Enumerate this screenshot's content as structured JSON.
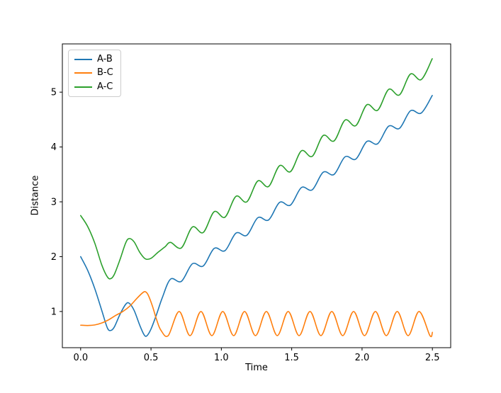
{
  "figure": {
    "background": "#ffffff",
    "axis_color": "#000000"
  },
  "chart_data": {
    "type": "line",
    "title": "",
    "xlabel": "Time",
    "ylabel": "Distance",
    "xlim": [
      -0.13,
      2.63
    ],
    "ylim": [
      0.34,
      5.88
    ],
    "grid": false,
    "legend": {
      "position": "upper-left",
      "entries": [
        "A-B",
        "B-C",
        "A-C"
      ]
    },
    "xticks": {
      "values": [
        0.0,
        0.5,
        1.0,
        1.5,
        2.0,
        2.5
      ],
      "labels": [
        "0.0",
        "0.5",
        "1.0",
        "1.5",
        "2.0",
        "2.5"
      ]
    },
    "yticks": {
      "values": [
        1,
        2,
        3,
        4,
        5
      ],
      "labels": [
        "1",
        "2",
        "3",
        "4",
        "5"
      ]
    },
    "series": [
      {
        "name": "A-B",
        "color": "#1f77b4",
        "points": [
          [
            0,
            2.0
          ],
          [
            0.05,
            1.75
          ],
          [
            0.1,
            1.42
          ],
          [
            0.15,
            1.02
          ],
          [
            0.19,
            0.7
          ],
          [
            0.215,
            0.655
          ],
          [
            0.24,
            0.72
          ],
          [
            0.28,
            0.95
          ],
          [
            0.32,
            1.13
          ],
          [
            0.345,
            1.15
          ],
          [
            0.38,
            1.02
          ],
          [
            0.42,
            0.75
          ],
          [
            0.45,
            0.58
          ],
          [
            0.47,
            0.555
          ],
          [
            0.5,
            0.68
          ],
          [
            0.54,
            0.95
          ],
          [
            0.58,
            1.25
          ],
          [
            0.639,
            1.59
          ],
          [
            0.716,
            1.55
          ],
          [
            0.794,
            1.87
          ],
          [
            0.871,
            1.83
          ],
          [
            0.949,
            2.15
          ],
          [
            1.026,
            2.11
          ],
          [
            1.104,
            2.43
          ],
          [
            1.181,
            2.39
          ],
          [
            1.259,
            2.71
          ],
          [
            1.336,
            2.67
          ],
          [
            1.414,
            2.99
          ],
          [
            1.491,
            2.94
          ],
          [
            1.569,
            3.26
          ],
          [
            1.646,
            3.22
          ],
          [
            1.724,
            3.54
          ],
          [
            1.801,
            3.5
          ],
          [
            1.879,
            3.82
          ],
          [
            1.956,
            3.78
          ],
          [
            2.034,
            4.1
          ],
          [
            2.111,
            4.06
          ],
          [
            2.189,
            4.38
          ],
          [
            2.266,
            4.34
          ],
          [
            2.344,
            4.66
          ],
          [
            2.421,
            4.62
          ],
          [
            2.499,
            4.94
          ]
        ]
      },
      {
        "name": "B-C",
        "color": "#ff7f0e",
        "points": [
          [
            0,
            0.75
          ],
          [
            0.05,
            0.745
          ],
          [
            0.1,
            0.755
          ],
          [
            0.15,
            0.79
          ],
          [
            0.2,
            0.85
          ],
          [
            0.25,
            0.93
          ],
          [
            0.3,
            1.0
          ],
          [
            0.35,
            1.1
          ],
          [
            0.4,
            1.24
          ],
          [
            0.44,
            1.34
          ],
          [
            0.46,
            1.36
          ],
          [
            0.48,
            1.3
          ],
          [
            0.51,
            1.1
          ],
          [
            0.54,
            0.85
          ],
          [
            0.57,
            0.66
          ],
          [
            0.6225,
            0.56
          ],
          [
            0.7,
            1.0
          ],
          [
            0.7775,
            0.56
          ],
          [
            0.855,
            1.0
          ],
          [
            0.9325,
            0.56
          ],
          [
            1.01,
            1.0
          ],
          [
            1.0875,
            0.56
          ],
          [
            1.165,
            1.0
          ],
          [
            1.2425,
            0.56
          ],
          [
            1.32,
            1.0
          ],
          [
            1.3975,
            0.56
          ],
          [
            1.475,
            1.0
          ],
          [
            1.5525,
            0.56
          ],
          [
            1.63,
            1.0
          ],
          [
            1.7075,
            0.56
          ],
          [
            1.785,
            1.0
          ],
          [
            1.8625,
            0.56
          ],
          [
            1.94,
            1.0
          ],
          [
            2.0175,
            0.56
          ],
          [
            2.095,
            1.0
          ],
          [
            2.1725,
            0.56
          ],
          [
            2.25,
            1.0
          ],
          [
            2.3275,
            0.56
          ],
          [
            2.405,
            1.0
          ],
          [
            2.4825,
            0.56
          ],
          [
            2.5,
            0.62
          ]
        ]
      },
      {
        "name": "A-C",
        "color": "#2ca02c",
        "points": [
          [
            0,
            2.75
          ],
          [
            0.05,
            2.55
          ],
          [
            0.1,
            2.25
          ],
          [
            0.15,
            1.85
          ],
          [
            0.19,
            1.63
          ],
          [
            0.215,
            1.6
          ],
          [
            0.24,
            1.68
          ],
          [
            0.28,
            1.95
          ],
          [
            0.32,
            2.25
          ],
          [
            0.345,
            2.33
          ],
          [
            0.38,
            2.27
          ],
          [
            0.42,
            2.08
          ],
          [
            0.46,
            1.96
          ],
          [
            0.5,
            1.97
          ],
          [
            0.55,
            2.08
          ],
          [
            0.6,
            2.18
          ],
          [
            0.639,
            2.26
          ],
          [
            0.716,
            2.16
          ],
          [
            0.794,
            2.54
          ],
          [
            0.871,
            2.44
          ],
          [
            0.949,
            2.82
          ],
          [
            1.026,
            2.72
          ],
          [
            1.104,
            3.1
          ],
          [
            1.181,
            3.0
          ],
          [
            1.259,
            3.38
          ],
          [
            1.336,
            3.28
          ],
          [
            1.414,
            3.66
          ],
          [
            1.491,
            3.55
          ],
          [
            1.569,
            3.93
          ],
          [
            1.646,
            3.83
          ],
          [
            1.724,
            4.21
          ],
          [
            1.801,
            4.11
          ],
          [
            1.879,
            4.49
          ],
          [
            1.956,
            4.39
          ],
          [
            2.034,
            4.77
          ],
          [
            2.111,
            4.67
          ],
          [
            2.189,
            5.05
          ],
          [
            2.266,
            4.95
          ],
          [
            2.344,
            5.33
          ],
          [
            2.421,
            5.23
          ],
          [
            2.499,
            5.61
          ]
        ]
      }
    ]
  }
}
